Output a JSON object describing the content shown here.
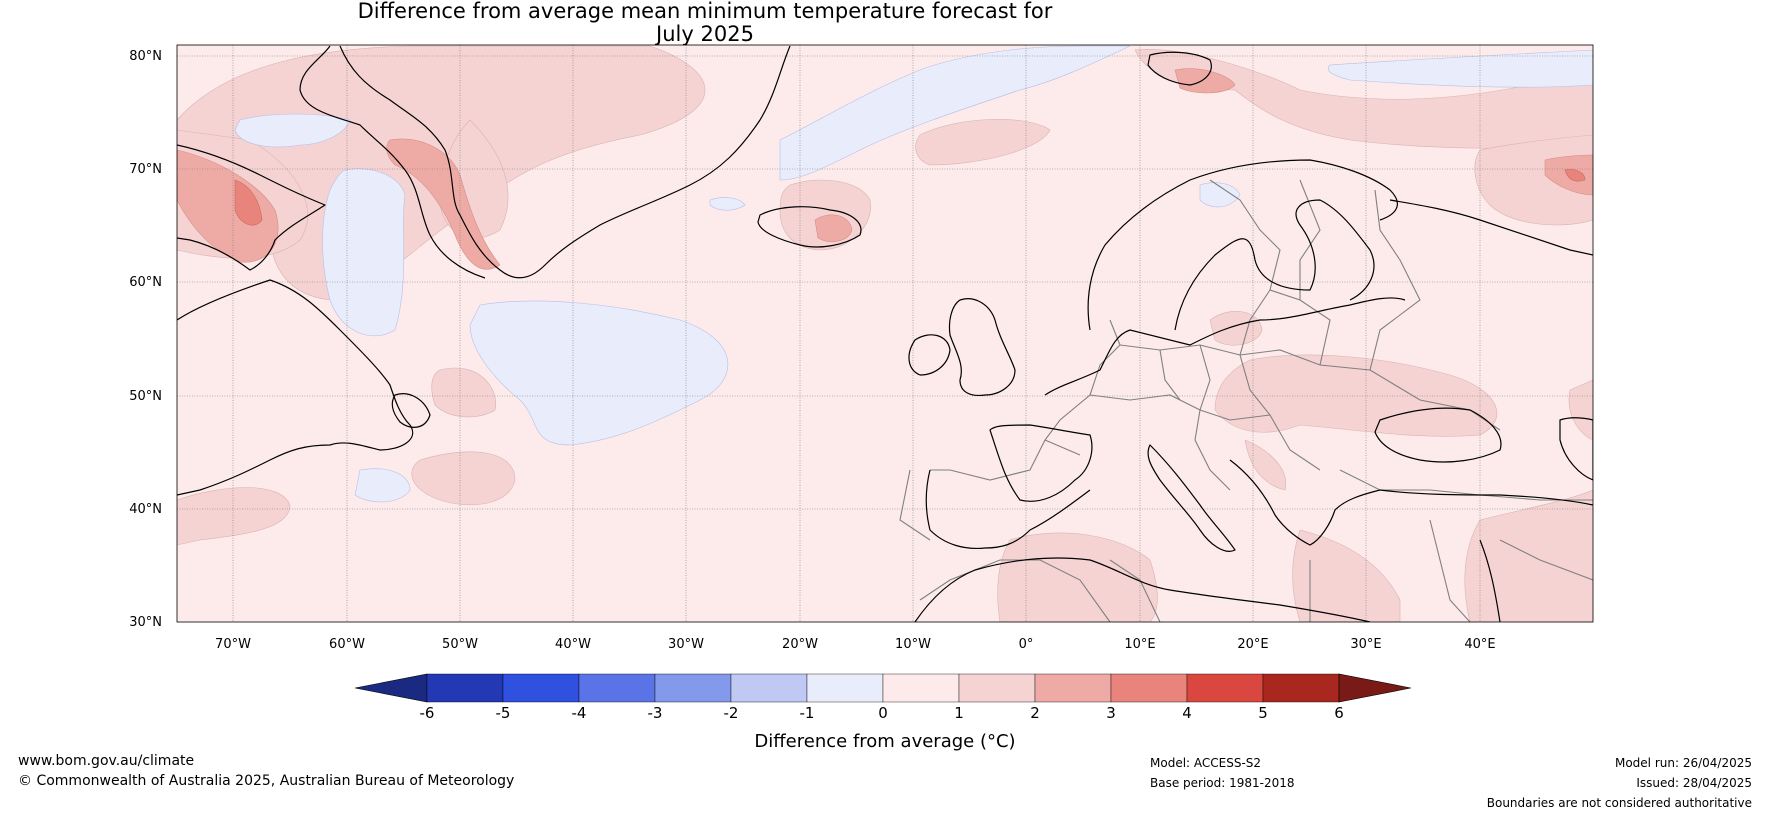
{
  "title_line1": "Difference from average mean minimum temperature forecast for",
  "title_line2": "July 2025",
  "map": {
    "lon_range": [
      -75,
      50
    ],
    "lat_range": [
      30,
      81
    ],
    "lat_ticks": [
      "80°N",
      "70°N",
      "60°N",
      "50°N",
      "40°N",
      "30°N"
    ],
    "lon_ticks": [
      "70°W",
      "60°W",
      "50°W",
      "40°W",
      "30°W",
      "20°W",
      "10°W",
      "0°",
      "10°E",
      "20°E",
      "30°E",
      "40°E"
    ],
    "background_anomaly_class": "0 to 1",
    "colors": {
      "ocean_land_0_1": "#fcebea",
      "class_1_2": "#f5d3d3",
      "class_2_3": "#eeaba6",
      "class_3_4": "#e8847b",
      "class_m1_0": "#e9ecfb",
      "coast": "#000000",
      "border": "#808080"
    }
  },
  "colorbar": {
    "label": "Difference from average (°C)",
    "ticks": [
      "-6",
      "-5",
      "-4",
      "-3",
      "-2",
      "-1",
      "0",
      "1",
      "2",
      "3",
      "4",
      "5",
      "6"
    ],
    "colors": [
      "#1a2a80",
      "#2338b5",
      "#3050e0",
      "#5a73e6",
      "#8399ec",
      "#bfc9f4",
      "#e9ecfb",
      "#fcebea",
      "#f5d3d3",
      "#eeaba6",
      "#e8847b",
      "#d9473f",
      "#a9271f",
      "#7a1a16"
    ]
  },
  "footer": {
    "website": "www.bom.gov.au/climate",
    "copyright": "© Commonwealth of Australia 2025, Australian Bureau of Meteorology",
    "model": "Model: ACCESS-S2",
    "base_period": "Base period: 1981-2018",
    "model_run": "Model run: 26/04/2025",
    "issued": "Issued: 28/04/2025",
    "disclaimer": "Boundaries are not considered authoritative"
  }
}
